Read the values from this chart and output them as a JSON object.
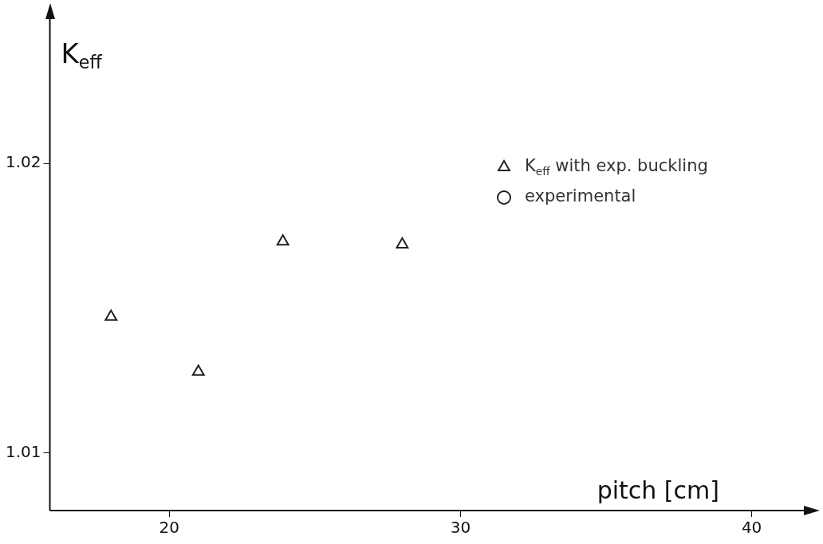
{
  "chart_data": {
    "type": "scatter",
    "xlabel": "pitch [cm]",
    "ylabel": "K$_{eff}$",
    "xlim": [
      15.9,
      41.9
    ],
    "xticks": [
      20,
      30,
      40
    ],
    "ylim": [
      1.008,
      1.0251
    ],
    "yticks": [
      1.01,
      1.02
    ],
    "grid": false,
    "legend": "top right",
    "series": [
      {
        "name": "K$_{eff}$ with exp. buckling",
        "color": "#222222",
        "marker": "triangle",
        "x": [
          18.0,
          21.0,
          23.9,
          28.0
        ],
        "values": [
          1.0147,
          1.0128,
          1.0173,
          1.0172
        ]
      },
      {
        "name": "experimental",
        "color": "#222222",
        "marker": "circle"
      }
    ]
  }
}
